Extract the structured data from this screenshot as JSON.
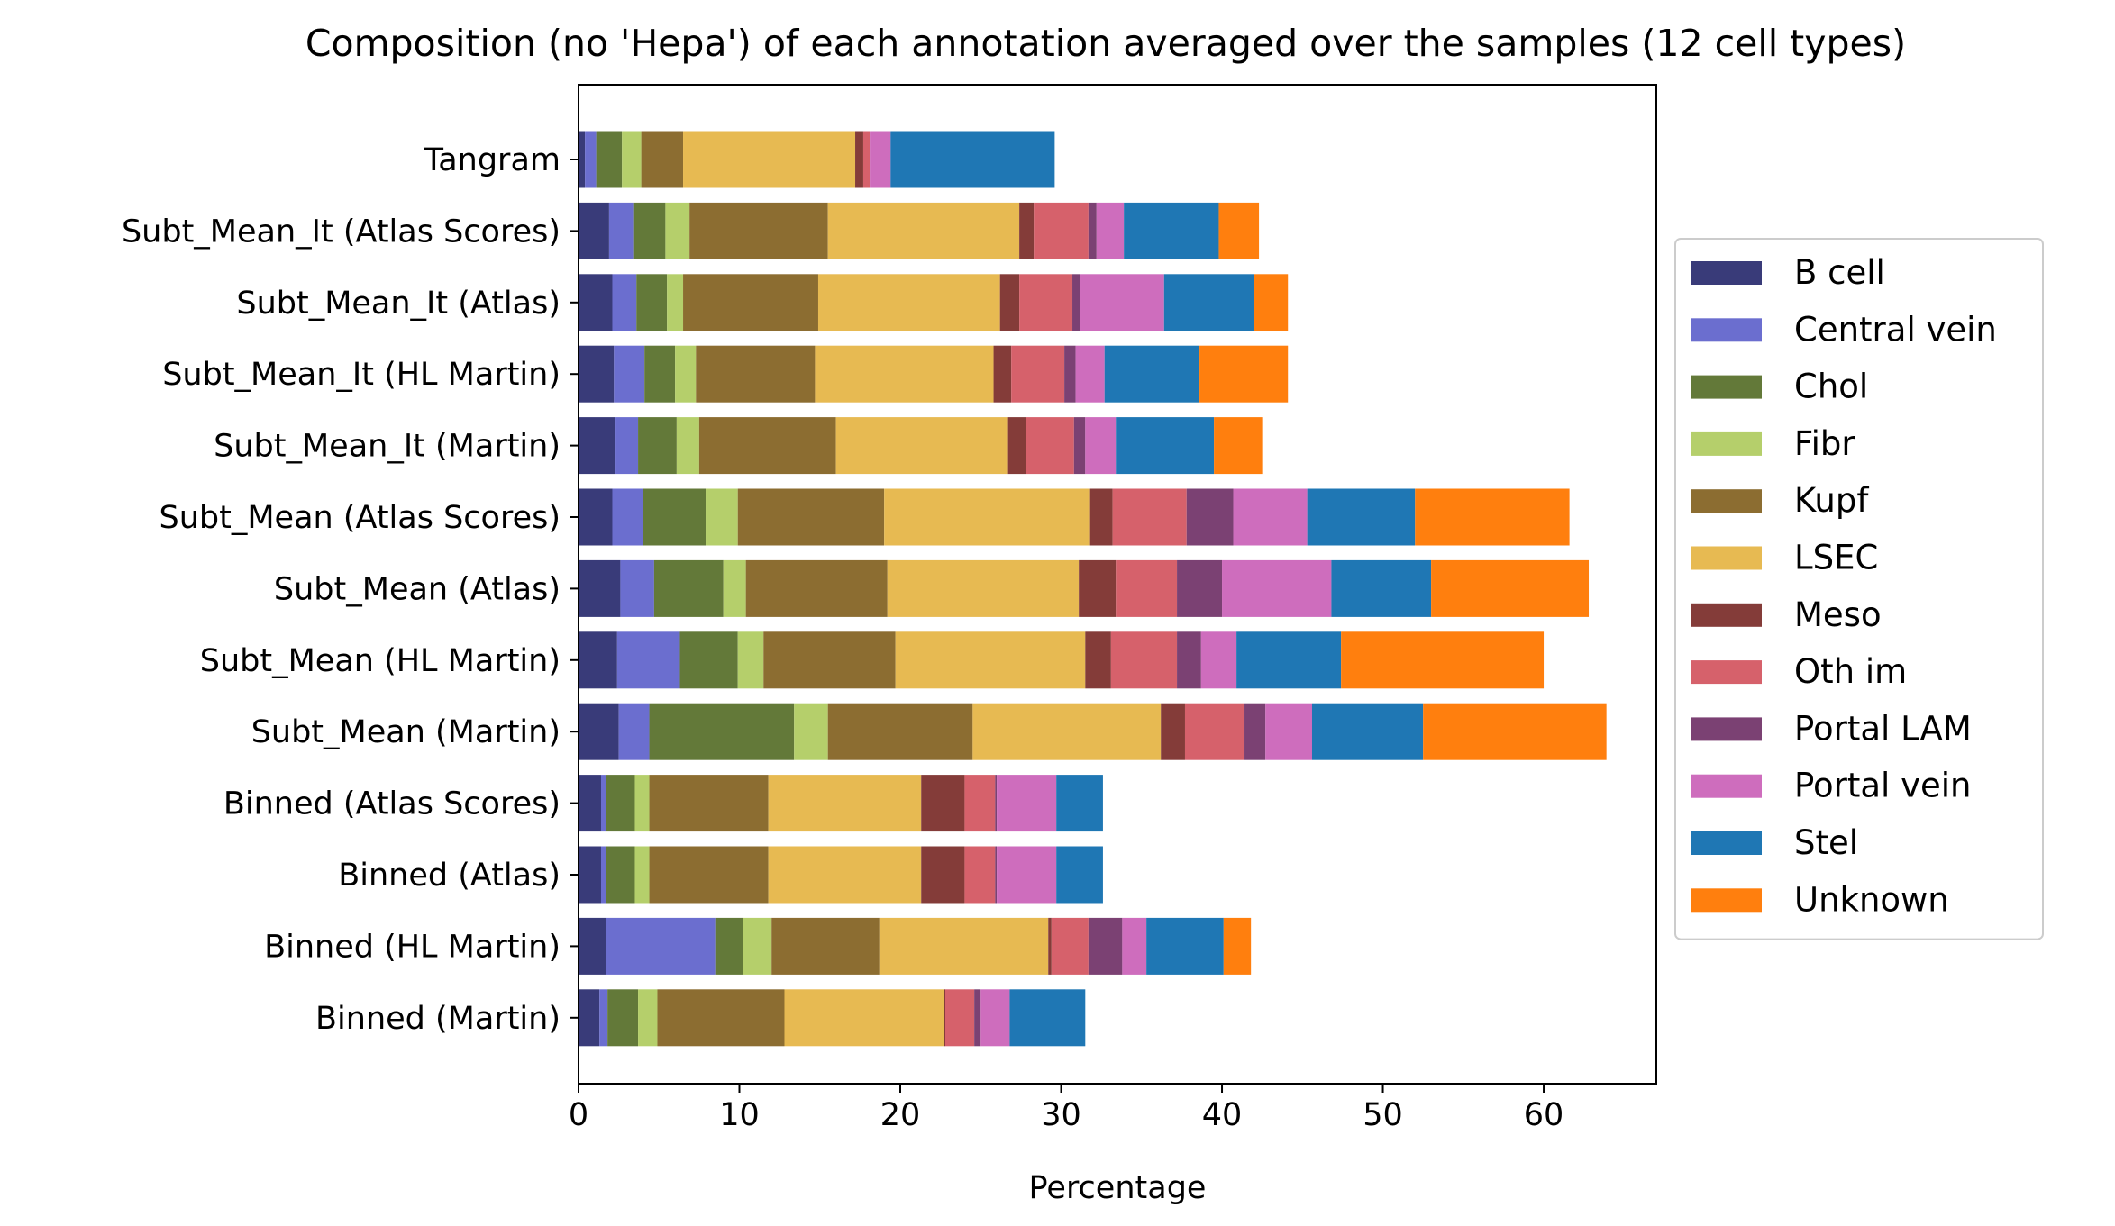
{
  "chart_data": {
    "type": "bar",
    "orientation": "horizontal",
    "stacked": true,
    "title": "Composition (no 'Hepa') of each annotation averaged over the samples (12 cell types)",
    "xlabel": "Percentage",
    "ylabel": "",
    "xlim": [
      0,
      67
    ],
    "xticks": [
      0,
      10,
      20,
      30,
      40,
      50,
      60
    ],
    "grid": false,
    "legend_position": "right",
    "categories": [
      "Tangram",
      "Subt_Mean_It (Atlas Scores)",
      "Subt_Mean_It (Atlas)",
      "Subt_Mean_It (HL Martin)",
      "Subt_Mean_It (Martin)",
      "Subt_Mean (Atlas Scores)",
      "Subt_Mean (Atlas)",
      "Subt_Mean (HL Martin)",
      "Subt_Mean (Martin)",
      "Binned (Atlas Scores)",
      "Binned (Atlas)",
      "Binned (HL Martin)",
      "Binned (Martin)"
    ],
    "series": [
      {
        "name": "B cell",
        "color": "#393b79",
        "values": [
          0.4,
          1.9,
          2.1,
          2.2,
          2.3,
          2.1,
          2.6,
          2.4,
          2.5,
          1.4,
          1.4,
          1.7,
          1.3
        ]
      },
      {
        "name": "Central vein",
        "color": "#6b6ecf",
        "values": [
          0.7,
          1.5,
          1.5,
          1.9,
          1.4,
          1.9,
          2.1,
          3.9,
          1.9,
          0.3,
          0.3,
          6.8,
          0.5
        ]
      },
      {
        "name": "Chol",
        "color": "#637939",
        "values": [
          1.6,
          2.0,
          1.9,
          1.9,
          2.4,
          3.9,
          4.3,
          3.6,
          9.0,
          1.8,
          1.8,
          1.7,
          1.9
        ]
      },
      {
        "name": "Fibr",
        "color": "#b5cf6b",
        "values": [
          1.2,
          1.5,
          1.0,
          1.3,
          1.4,
          2.0,
          1.4,
          1.6,
          2.1,
          0.9,
          0.9,
          1.8,
          1.2
        ]
      },
      {
        "name": "Kupf",
        "color": "#8c6d31",
        "values": [
          2.6,
          8.6,
          8.4,
          7.4,
          8.5,
          9.1,
          8.8,
          8.2,
          9.0,
          7.4,
          7.4,
          6.7,
          7.9
        ]
      },
      {
        "name": "LSEC",
        "color": "#e7ba52",
        "values": [
          10.7,
          11.9,
          11.3,
          11.1,
          10.7,
          12.8,
          11.9,
          11.8,
          11.7,
          9.5,
          9.5,
          10.5,
          9.9
        ]
      },
      {
        "name": "Meso",
        "color": "#843c39",
        "values": [
          0.5,
          0.9,
          1.2,
          1.1,
          1.1,
          1.4,
          2.3,
          1.6,
          1.5,
          2.7,
          2.7,
          0.2,
          0.1
        ]
      },
      {
        "name": "Oth im",
        "color": "#d6616b",
        "values": [
          0.4,
          3.4,
          3.3,
          3.3,
          3.0,
          4.6,
          3.8,
          4.1,
          3.7,
          1.9,
          1.9,
          2.3,
          1.8
        ]
      },
      {
        "name": "Portal LAM",
        "color": "#7b4173",
        "values": [
          0.0,
          0.5,
          0.5,
          0.7,
          0.7,
          2.9,
          2.8,
          1.5,
          1.3,
          0.1,
          0.1,
          2.1,
          0.4
        ]
      },
      {
        "name": "Portal vein",
        "color": "#ce6dbd",
        "values": [
          1.3,
          1.7,
          5.2,
          1.8,
          1.9,
          4.6,
          6.8,
          2.2,
          2.9,
          3.7,
          3.7,
          1.5,
          1.8
        ]
      },
      {
        "name": "Stel",
        "color": "#1f77b4",
        "values": [
          10.2,
          5.9,
          5.6,
          5.9,
          6.1,
          6.7,
          6.2,
          6.5,
          6.9,
          2.9,
          2.9,
          4.8,
          4.7
        ]
      },
      {
        "name": "Unknown",
        "color": "#ff7f0e",
        "values": [
          0.0,
          2.5,
          2.1,
          5.5,
          3.0,
          9.6,
          9.8,
          12.6,
          11.4,
          0.0,
          0.0,
          1.7,
          0.0
        ]
      }
    ]
  }
}
